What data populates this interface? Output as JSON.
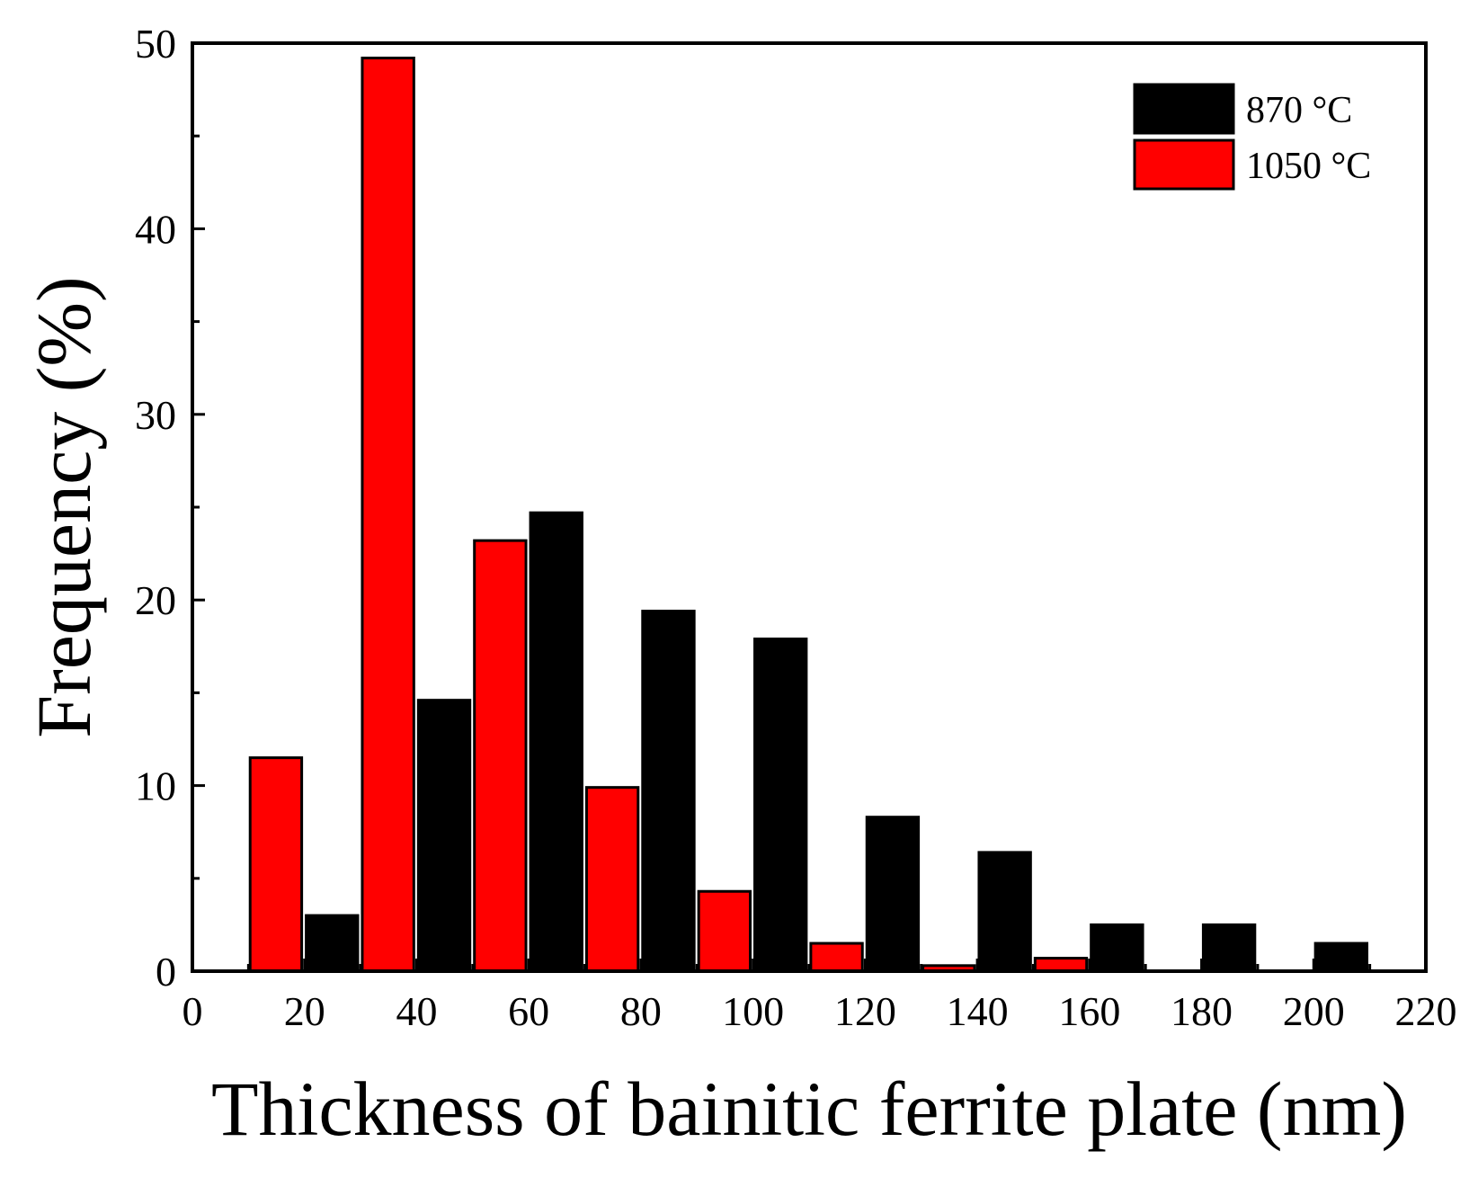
{
  "chart_data": {
    "type": "bar",
    "title": "",
    "xlabel": "Thickness of bainitic ferrite plate (nm)",
    "ylabel": "Frequency (%)",
    "xlim": [
      0,
      220
    ],
    "ylim": [
      0,
      50
    ],
    "x_ticks": [
      0,
      20,
      40,
      60,
      80,
      100,
      120,
      140,
      160,
      180,
      200,
      220
    ],
    "y_ticks": [
      0,
      10,
      20,
      30,
      40,
      50
    ],
    "bin_starts": [
      10,
      30,
      50,
      70,
      90,
      110,
      130,
      150,
      170,
      190
    ],
    "series": [
      {
        "name": "870 °C",
        "color": "#000000",
        "bin_starts": [
          20,
          40,
          60,
          80,
          100,
          120,
          140,
          160,
          180,
          200
        ],
        "values": [
          3.0,
          14.6,
          24.7,
          19.4,
          17.9,
          8.3,
          6.4,
          2.5,
          2.5,
          1.5
        ]
      },
      {
        "name": "1050 °C",
        "color": "#ff0000",
        "bin_starts": [
          10,
          30,
          50,
          70,
          90,
          110,
          130,
          150
        ],
        "values": [
          11.5,
          49.2,
          23.2,
          9.9,
          4.3,
          1.5,
          0.3,
          0.7
        ]
      }
    ],
    "legend": {
      "position": "top-right"
    },
    "grid": false
  }
}
